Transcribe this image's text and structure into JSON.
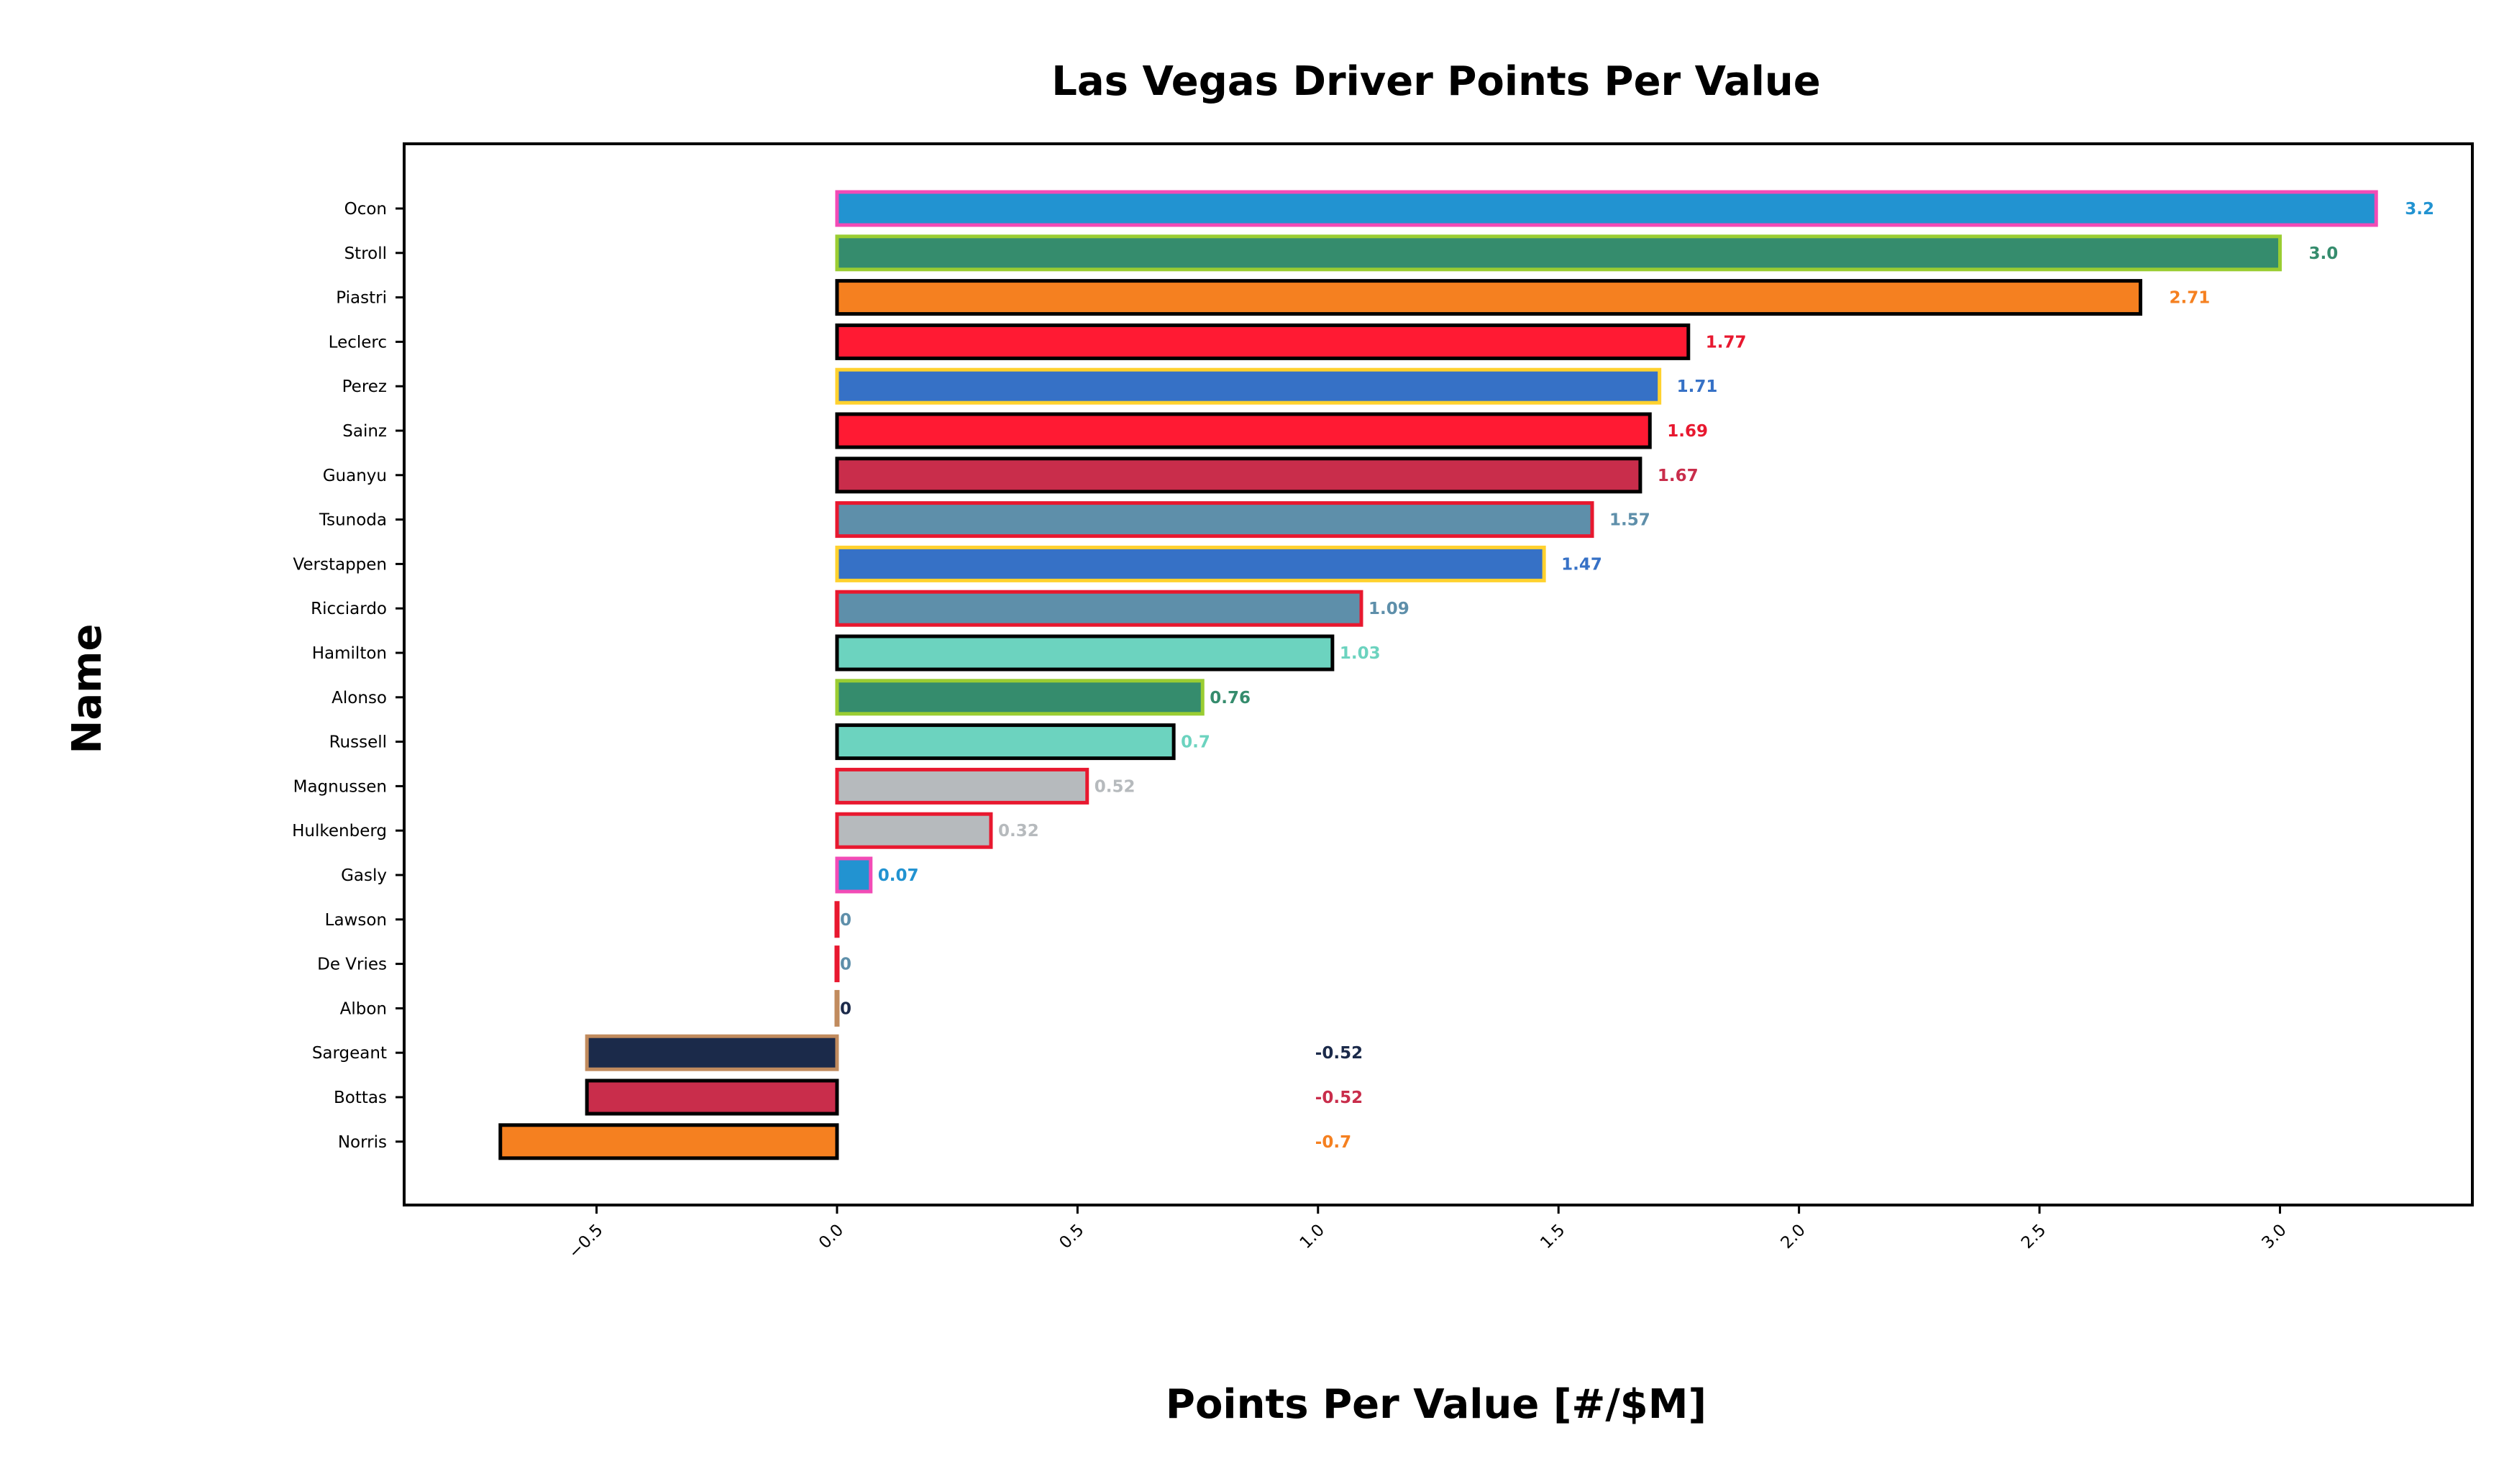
{
  "chart_data": {
    "type": "bar",
    "orientation": "horizontal",
    "title": "Las Vegas Driver Points Per Value",
    "xlabel": "Points Per Value [#/$M]",
    "ylabel": "Name",
    "xlim": [
      -0.9,
      3.4
    ],
    "xticks": [
      -0.5,
      0.0,
      0.5,
      1.0,
      1.5,
      2.0,
      2.5,
      3.0
    ],
    "xtick_labels": [
      "−0.5",
      "0.0",
      "0.5",
      "1.0",
      "1.5",
      "2.0",
      "2.5",
      "3.0"
    ],
    "grid": false,
    "legend": "none",
    "bars": [
      {
        "name": "Ocon",
        "value": 3.2,
        "label": "3.2",
        "fill": "#2293D1",
        "edge": "#F24BB6"
      },
      {
        "name": "Stroll",
        "value": 3.0,
        "label": "3.0",
        "fill": "#358C6D",
        "edge": "#9ACD32"
      },
      {
        "name": "Piastri",
        "value": 2.71,
        "label": "2.71",
        "fill": "#F58020",
        "edge": "#000000"
      },
      {
        "name": "Leclerc",
        "value": 1.77,
        "label": "1.77",
        "fill": "#FF1A33",
        "edge": "#000000"
      },
      {
        "name": "Perez",
        "value": 1.71,
        "label": "1.71",
        "fill": "#3671C6",
        "edge": "#FFD12E"
      },
      {
        "name": "Sainz",
        "value": 1.69,
        "label": "1.69",
        "fill": "#FF1A33",
        "edge": "#000000"
      },
      {
        "name": "Guanyu",
        "value": 1.67,
        "label": "1.67",
        "fill": "#C92D4B",
        "edge": "#000000"
      },
      {
        "name": "Tsunoda",
        "value": 1.57,
        "label": "1.57",
        "fill": "#5E8FAA",
        "edge": "#E8182F"
      },
      {
        "name": "Verstappen",
        "value": 1.47,
        "label": "1.47",
        "fill": "#3671C6",
        "edge": "#FFD12E"
      },
      {
        "name": "Ricciardo",
        "value": 1.09,
        "label": "1.09",
        "fill": "#5E8FAA",
        "edge": "#E8182F"
      },
      {
        "name": "Hamilton",
        "value": 1.03,
        "label": "1.03",
        "fill": "#6CD3BF",
        "edge": "#000000"
      },
      {
        "name": "Alonso",
        "value": 0.76,
        "label": "0.76",
        "fill": "#358C6D",
        "edge": "#9ACD32"
      },
      {
        "name": "Russell",
        "value": 0.7,
        "label": "0.7",
        "fill": "#6CD3BF",
        "edge": "#000000"
      },
      {
        "name": "Magnussen",
        "value": 0.52,
        "label": "0.52",
        "fill": "#B6BABD",
        "edge": "#E8182F"
      },
      {
        "name": "Hulkenberg",
        "value": 0.32,
        "label": "0.32",
        "fill": "#B6BABD",
        "edge": "#E8182F"
      },
      {
        "name": "Gasly",
        "value": 0.07,
        "label": "0.07",
        "fill": "#2293D1",
        "edge": "#F24BB6"
      },
      {
        "name": "Lawson",
        "value": 0,
        "label": "0",
        "fill": "#5E8FAA",
        "edge": "#E8182F"
      },
      {
        "name": "De Vries",
        "value": 0,
        "label": "0",
        "fill": "#5E8FAA",
        "edge": "#E8182F"
      },
      {
        "name": "Albon",
        "value": 0,
        "label": "0",
        "fill": "#1B2A4A",
        "edge": "#C18B5E"
      },
      {
        "name": "Sargeant",
        "value": -0.52,
        "label": "-0.52",
        "fill": "#1B2A4A",
        "edge": "#C18B5E"
      },
      {
        "name": "Bottas",
        "value": -0.52,
        "label": "-0.52",
        "fill": "#C92D4B",
        "edge": "#000000"
      },
      {
        "name": "Norris",
        "value": -0.7,
        "label": "-0.7",
        "fill": "#F58020",
        "edge": "#000000"
      }
    ],
    "label_colors": {
      "Ocon": "#2293D1",
      "Stroll": "#358C6D",
      "Piastri": "#F58020",
      "Leclerc": "#E8182F",
      "Perez": "#3671C6",
      "Sainz": "#E8182F",
      "Guanyu": "#C92D4B",
      "Tsunoda": "#5E8FAA",
      "Verstappen": "#3671C6",
      "Ricciardo": "#5E8FAA",
      "Hamilton": "#6CD3BF",
      "Alonso": "#358C6D",
      "Russell": "#6CD3BF",
      "Magnussen": "#B6BABD",
      "Hulkenberg": "#B6BABD",
      "Gasly": "#2293D1",
      "Lawson": "#5E8FAA",
      "De Vries": "#5E8FAA",
      "Albon": "#1B2A4A",
      "Sargeant": "#1B2A4A",
      "Bottas": "#C92D4B",
      "Norris": "#F58020"
    }
  }
}
